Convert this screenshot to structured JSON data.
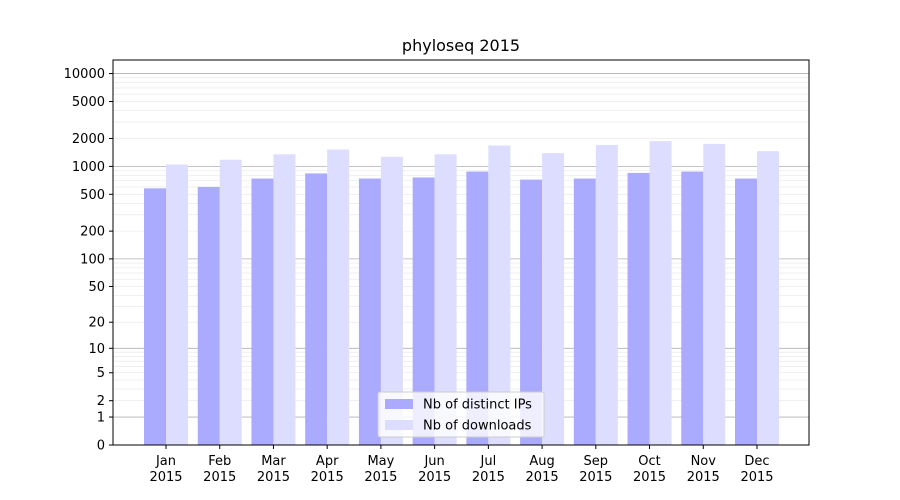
{
  "chart_data": {
    "type": "bar",
    "title": "phyloseq 2015",
    "xlabel": "",
    "ylabel": "",
    "y_scale": "log1p",
    "ylim": [
      0,
      14000
    ],
    "y_ticks": [
      0,
      1,
      2,
      5,
      10,
      20,
      50,
      100,
      200,
      500,
      1000,
      2000,
      5000,
      10000
    ],
    "y_tick_labels": [
      "0",
      "1",
      "2",
      "5",
      "10",
      "20",
      "50",
      "100",
      "200",
      "500",
      "1000",
      "2000",
      "5000",
      "10000"
    ],
    "grid": true,
    "legend_position": "bottom-center",
    "categories": [
      "Jan\n2015",
      "Feb\n2015",
      "Mar\n2015",
      "Apr\n2015",
      "May\n2015",
      "Jun\n2015",
      "Jul\n2015",
      "Aug\n2015",
      "Sep\n2015",
      "Oct\n2015",
      "Nov\n2015",
      "Dec\n2015"
    ],
    "series": [
      {
        "name": "Nb of distinct IPs",
        "color": "#aaaaff",
        "values": [
          580,
          600,
          740,
          840,
          740,
          760,
          880,
          720,
          740,
          850,
          880,
          740
        ]
      },
      {
        "name": "Nb of downloads",
        "color": "#ddddff",
        "values": [
          1050,
          1180,
          1350,
          1520,
          1270,
          1350,
          1680,
          1390,
          1700,
          1870,
          1750,
          1460
        ]
      }
    ]
  }
}
